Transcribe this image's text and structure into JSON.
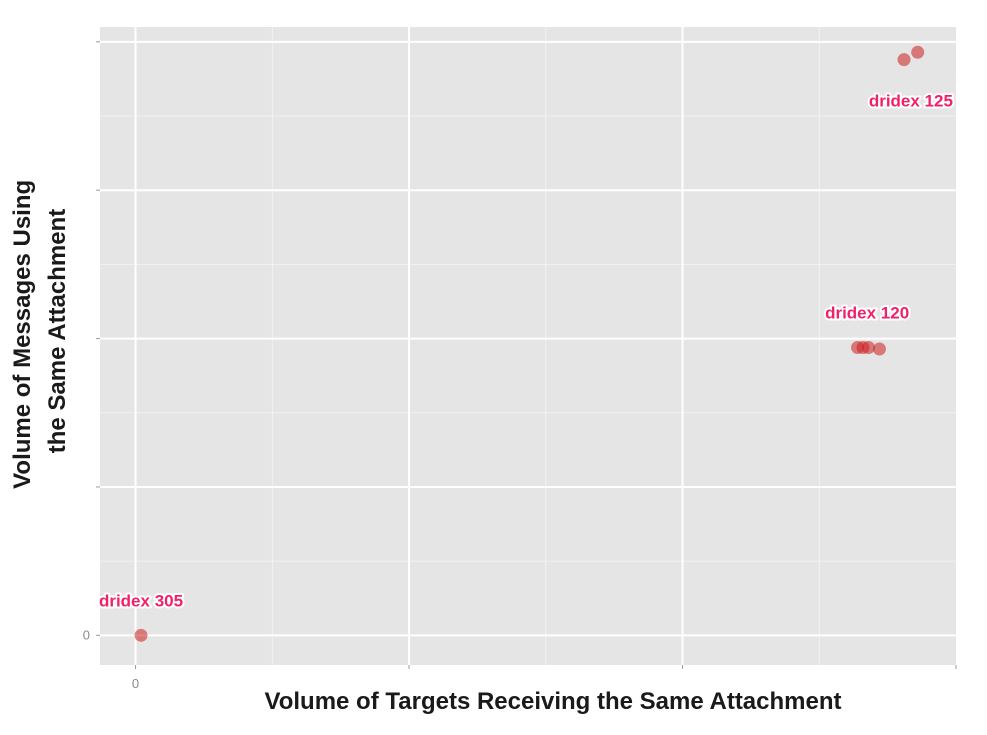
{
  "chart_data": {
    "type": "scatter",
    "title": "",
    "xlabel": "Volume of Targets Receiving the Same Attachment",
    "ylabel_lines": [
      "Volume of Messages Using",
      "the Same Attachment"
    ],
    "x_tick_labels": [
      "0"
    ],
    "y_tick_labels": [
      "0"
    ],
    "xlim": [
      -0.13,
      3.0
    ],
    "ylim": [
      -0.2,
      4.1
    ],
    "x_major_breaks": [
      0,
      1,
      2
    ],
    "y_major_breaks": [
      0,
      1,
      2,
      3,
      4
    ],
    "grid": true,
    "legend": "none",
    "colors": {
      "panel": "#e5e5e5",
      "grid": "#ffffff",
      "point": "#cc1f1f",
      "label": "#f1206a"
    },
    "series": [
      {
        "label": "dridex 305",
        "points": [
          {
            "x": 0.02,
            "y": 0.0
          }
        ]
      },
      {
        "label": "dridex 120",
        "points": [
          {
            "x": 2.64,
            "y": 1.94
          },
          {
            "x": 2.66,
            "y": 1.94
          },
          {
            "x": 2.68,
            "y": 1.94
          },
          {
            "x": 2.72,
            "y": 1.93
          }
        ]
      },
      {
        "label": "dridex 125",
        "points": [
          {
            "x": 2.81,
            "y": 3.88
          },
          {
            "x": 2.86,
            "y": 3.93
          }
        ]
      }
    ]
  }
}
